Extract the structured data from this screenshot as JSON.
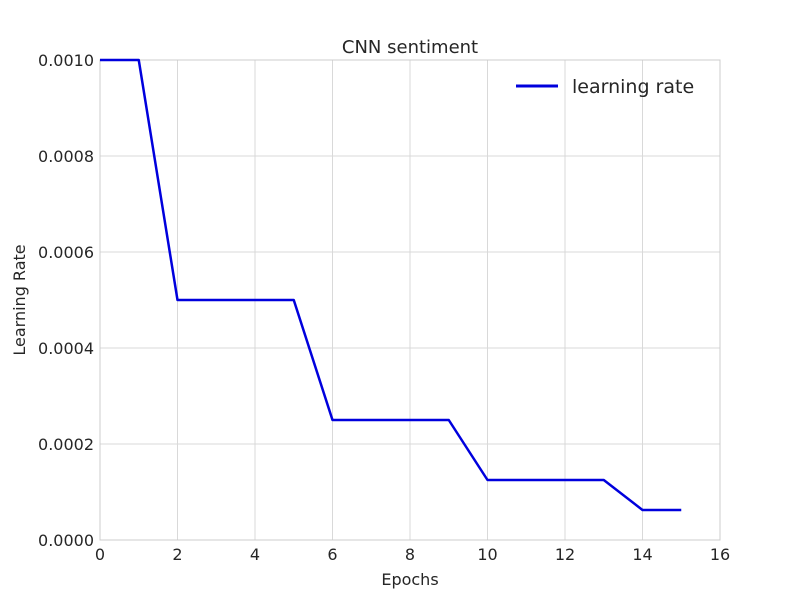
{
  "chart_data": {
    "type": "line",
    "title": "CNN sentiment",
    "xlabel": "Epochs",
    "ylabel": "Learning Rate",
    "xlim": [
      0,
      16
    ],
    "ylim": [
      0.0,
      0.001
    ],
    "xticks": [
      0,
      2,
      4,
      6,
      8,
      10,
      12,
      14,
      16
    ],
    "xtick_labels": [
      "0",
      "2",
      "4",
      "6",
      "8",
      "10",
      "12",
      "14",
      "16"
    ],
    "yticks": [
      0.0,
      0.0002,
      0.0004,
      0.0006,
      0.0008,
      0.001
    ],
    "ytick_labels": [
      "0.0000",
      "0.0002",
      "0.0004",
      "0.0006",
      "0.0008",
      "0.0010"
    ],
    "grid": true,
    "legend": "top-right",
    "series": [
      {
        "name": "learning rate",
        "color": "#0000dd",
        "x": [
          0,
          1,
          2,
          3,
          4,
          5,
          6,
          7,
          8,
          9,
          10,
          11,
          12,
          13,
          14,
          15
        ],
        "y": [
          0.001,
          0.001,
          0.0005,
          0.0005,
          0.0005,
          0.0005,
          0.00025,
          0.00025,
          0.00025,
          0.00025,
          0.000125,
          0.000125,
          0.000125,
          0.000125,
          6.25e-05,
          6.25e-05
        ]
      }
    ]
  }
}
